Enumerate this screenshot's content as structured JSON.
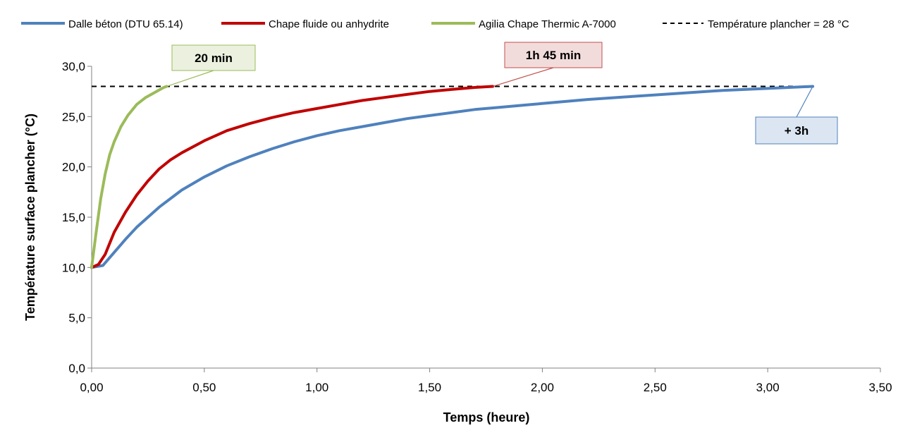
{
  "chart_data": {
    "type": "line",
    "xlabel": "Temps (heure)",
    "ylabel": "Température surface plancher (°C)",
    "xlim": [
      0,
      3.5
    ],
    "ylim": [
      0,
      30
    ],
    "xticks": [
      "0,00",
      "0,50",
      "1,00",
      "1,50",
      "2,00",
      "2,50",
      "3,00",
      "3,50"
    ],
    "yticks": [
      "0,0",
      "5,0",
      "10,0",
      "15,0",
      "20,0",
      "25,0",
      "30,0"
    ],
    "grid": false,
    "legend_position": "top",
    "series": [
      {
        "name": "Dalle béton (DTU 65.14)",
        "color": "#4F81BD",
        "style": "solid",
        "x": [
          0,
          0.05,
          0.1,
          0.15,
          0.2,
          0.3,
          0.4,
          0.5,
          0.6,
          0.7,
          0.8,
          0.9,
          1.0,
          1.1,
          1.2,
          1.3,
          1.4,
          1.5,
          1.6,
          1.7,
          1.8,
          1.9,
          2.0,
          2.2,
          2.4,
          2.6,
          2.8,
          3.0,
          3.2
        ],
        "y": [
          10.0,
          10.2,
          11.5,
          12.8,
          14.0,
          16.0,
          17.7,
          19.0,
          20.1,
          21.0,
          21.8,
          22.5,
          23.1,
          23.6,
          24.0,
          24.4,
          24.8,
          25.1,
          25.4,
          25.7,
          25.9,
          26.1,
          26.3,
          26.7,
          27.0,
          27.3,
          27.6,
          27.8,
          28.0
        ]
      },
      {
        "name": "Chape fluide ou anhydrite",
        "color": "#C00000",
        "style": "solid",
        "x": [
          0,
          0.03,
          0.06,
          0.1,
          0.15,
          0.2,
          0.25,
          0.3,
          0.35,
          0.4,
          0.5,
          0.6,
          0.7,
          0.8,
          0.9,
          1.0,
          1.1,
          1.2,
          1.3,
          1.4,
          1.5,
          1.6,
          1.7,
          1.78
        ],
        "y": [
          10.0,
          10.3,
          11.3,
          13.5,
          15.5,
          17.2,
          18.6,
          19.8,
          20.7,
          21.4,
          22.6,
          23.6,
          24.3,
          24.9,
          25.4,
          25.8,
          26.2,
          26.6,
          26.9,
          27.2,
          27.5,
          27.7,
          27.9,
          28.0
        ]
      },
      {
        "name": "Agilia Chape Thermic A-7000",
        "color": "#9BBB59",
        "style": "solid",
        "x": [
          0,
          0.02,
          0.04,
          0.06,
          0.08,
          0.1,
          0.13,
          0.16,
          0.2,
          0.24,
          0.28,
          0.32,
          0.333
        ],
        "y": [
          10.0,
          13.5,
          16.8,
          19.3,
          21.2,
          22.5,
          24.0,
          25.1,
          26.2,
          26.9,
          27.4,
          27.9,
          28.0
        ]
      },
      {
        "name": "Température plancher = 28 °C",
        "color": "#000000",
        "style": "dashed",
        "x": [
          0,
          3.2
        ],
        "y": [
          28,
          28
        ]
      }
    ],
    "annotations": [
      {
        "text": "20 min",
        "point": [
          0.333,
          28.0
        ],
        "fill": "#EBF1DE",
        "stroke": "#9BBB59",
        "line_color": "#9BBB59"
      },
      {
        "text": "1h 45 min",
        "point": [
          1.78,
          28.0
        ],
        "fill": "#F2DCDB",
        "stroke": "#C0504D",
        "line_color": "#C0504D"
      },
      {
        "text": "+ 3h",
        "point": [
          3.2,
          28.0
        ],
        "fill": "#DCE6F2",
        "stroke": "#4F81BD",
        "line_color": "#4F81BD"
      }
    ]
  }
}
